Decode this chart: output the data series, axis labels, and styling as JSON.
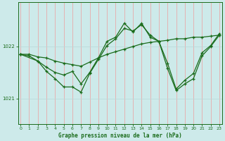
{
  "title": "Graphe pression niveau de la mer (hPa)",
  "bg_color": "#cdeaea",
  "grid_color_v": "#e8aaaa",
  "grid_color_h": "#b8d8d8",
  "line_color": "#1a6b1a",
  "x_ticks": [
    0,
    1,
    2,
    3,
    4,
    5,
    6,
    7,
    8,
    9,
    10,
    11,
    12,
    13,
    14,
    15,
    16,
    17,
    18,
    19,
    20,
    21,
    22,
    23
  ],
  "ylim": [
    1020.5,
    1022.85
  ],
  "yticks": [
    1021,
    1022
  ],
  "series1_x": [
    0,
    1,
    2,
    3,
    4,
    5,
    6,
    7,
    8,
    9,
    10,
    11,
    12,
    13,
    14,
    15,
    16,
    17,
    18,
    19,
    20,
    21,
    22,
    23
  ],
  "series1_y": [
    1021.85,
    1021.85,
    1021.8,
    1021.78,
    1021.72,
    1021.68,
    1021.65,
    1021.62,
    1021.7,
    1021.78,
    1021.85,
    1021.9,
    1021.95,
    1022.0,
    1022.05,
    1022.08,
    1022.1,
    1022.12,
    1022.15,
    1022.15,
    1022.18,
    1022.18,
    1022.2,
    1022.22
  ],
  "series2_x": [
    0,
    1,
    2,
    3,
    4,
    5,
    6,
    7,
    8,
    9,
    10,
    11,
    12,
    13,
    14,
    15,
    16,
    17,
    18,
    19,
    20,
    21,
    22,
    23
  ],
  "series2_y": [
    1021.85,
    1021.82,
    1021.72,
    1021.6,
    1021.5,
    1021.45,
    1021.52,
    1021.28,
    1021.5,
    1021.78,
    1022.1,
    1022.18,
    1022.45,
    1022.28,
    1022.45,
    1022.18,
    1022.1,
    1021.68,
    1021.18,
    1021.35,
    1021.48,
    1021.88,
    1022.02,
    1022.25
  ],
  "series3_x": [
    0,
    2,
    3,
    4,
    5,
    6,
    7,
    8,
    9,
    10,
    11,
    12,
    13,
    14,
    15,
    16,
    17,
    18,
    19,
    20,
    21,
    22,
    23
  ],
  "series3_y": [
    1021.85,
    1021.72,
    1021.52,
    1021.38,
    1021.22,
    1021.22,
    1021.12,
    1021.48,
    1021.75,
    1022.02,
    1022.15,
    1022.35,
    1022.3,
    1022.42,
    1022.22,
    1022.1,
    1021.58,
    1021.15,
    1021.28,
    1021.38,
    1021.82,
    1022.0,
    1022.22
  ]
}
